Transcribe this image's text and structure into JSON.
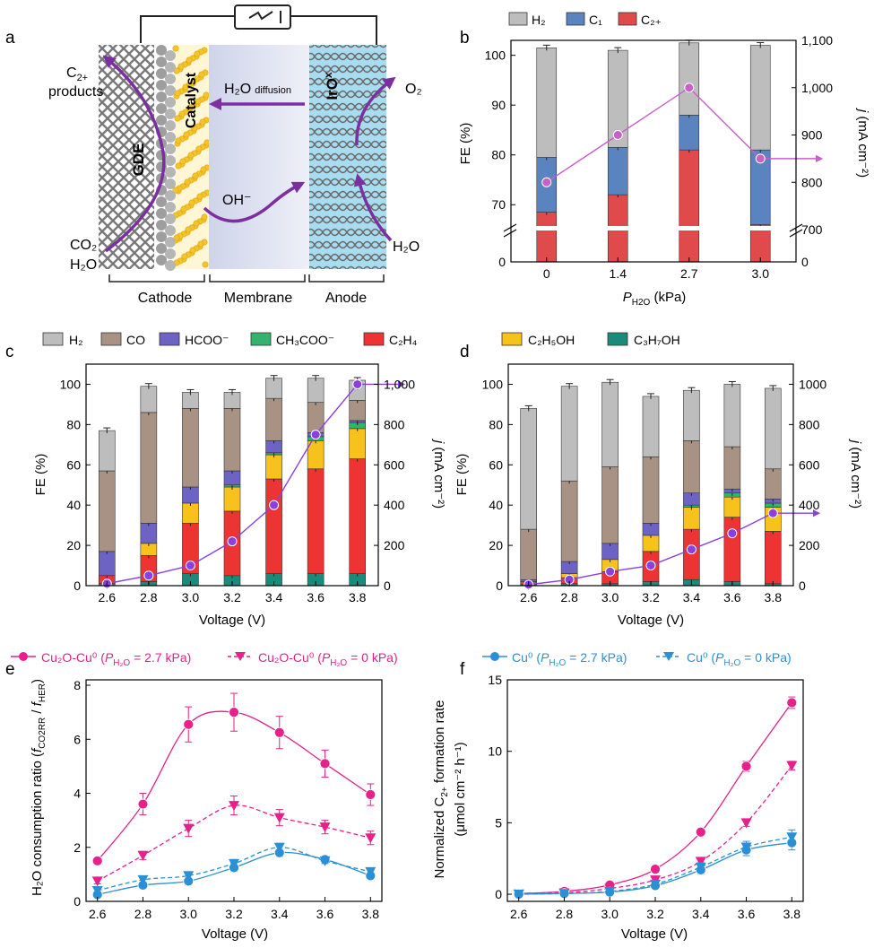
{
  "panel_labels": {
    "a": "a",
    "b": "b",
    "c": "c",
    "d": "d",
    "e": "e",
    "f": "f"
  },
  "panel_a": {
    "labels": {
      "gde": "GDE",
      "catalyst": "Catalyst",
      "irox": "IrO",
      "irox_sub": "x",
      "h2o_diffusion_main": "H₂O",
      "h2o_diffusion_sub": "diffusion",
      "oh": "OH⁻",
      "c2_top": "C",
      "c2_sub": "2+",
      "products": "products",
      "o2": "O₂",
      "co2": "CO₂",
      "h2o_left": "H₂O",
      "h2o_right": "H₂O",
      "cathode": "Cathode",
      "membrane": "Membrane",
      "anode": "Anode"
    },
    "colors": {
      "arrow": "#7b2fa0",
      "catalyst": "#f4c430",
      "membrane": "#dde0ee",
      "anode": "#a8dcf0",
      "mesh": "#777777"
    }
  },
  "chart_data": [
    {
      "panel": "b",
      "type": "bar",
      "xlabel_main": "P",
      "xlabel_sub": "H2O",
      "xlabel_unit": " (kPa)",
      "ylabel": "FE (%)",
      "y2label_j": "j",
      "y2label_unit": " (mA cm⁻²)",
      "categories": [
        "0",
        "1.4",
        "2.7",
        "3.0"
      ],
      "ylim": [
        0,
        103
      ],
      "y_ticks": [
        "0",
        "70",
        "80",
        "90",
        "100"
      ],
      "y2_ticks": [
        "0",
        "700",
        "800",
        "900",
        "1,000",
        "1,100"
      ],
      "legend": [
        "H₂",
        "C₁",
        "C₂₊"
      ],
      "series": [
        {
          "name": "C2+",
          "color": "#e04a4a",
          "values": [
            68.5,
            72,
            81,
            66
          ]
        },
        {
          "name": "C1",
          "color": "#5a84c0",
          "values": [
            11,
            9.5,
            7,
            15
          ]
        },
        {
          "name": "H2",
          "color": "#bdbdbd",
          "values": [
            22,
            19.5,
            14.5,
            21
          ]
        }
      ],
      "j_values": [
        800,
        900,
        1000,
        850
      ],
      "j_color": "#c95fc9"
    },
    {
      "panel": "c",
      "type": "bar",
      "xlabel": "Voltage (V)",
      "ylabel": "FE (%)",
      "y2label_j": "j",
      "y2label_unit": " (mA cm⁻²)",
      "categories": [
        "2.6",
        "2.8",
        "3.0",
        "3.2",
        "3.4",
        "3.6",
        "3.8"
      ],
      "ylim": [
        0,
        110
      ],
      "y_ticks": [
        "0",
        "20",
        "40",
        "60",
        "80",
        "100"
      ],
      "y2lim": [
        0,
        1100
      ],
      "y2_ticks": [
        "0",
        "200",
        "400",
        "600",
        "800",
        "1,000"
      ],
      "legend": [
        "H₂",
        "CO",
        "HCOO⁻",
        "CH₃COO⁻",
        "C₂H₄"
      ],
      "series": [
        {
          "name": "C3H7OH",
          "color": "#1a8a7a",
          "values": [
            1,
            2,
            6,
            5,
            6,
            6,
            6
          ]
        },
        {
          "name": "C2H4",
          "color": "#ee3333",
          "values": [
            4,
            13,
            25,
            32,
            47,
            52,
            57
          ]
        },
        {
          "name": "C2H5OH",
          "color": "#f7c21c",
          "values": [
            0,
            6,
            10,
            12,
            12,
            14,
            15
          ]
        },
        {
          "name": "CH3COO",
          "color": "#33b36b",
          "values": [
            0,
            0,
            0,
            1,
            1,
            2,
            3
          ]
        },
        {
          "name": "HCOO",
          "color": "#6d63c4",
          "values": [
            12,
            10,
            8,
            7,
            6,
            2,
            1
          ]
        },
        {
          "name": "CO",
          "color": "#a89284",
          "values": [
            40,
            55,
            39,
            31,
            21,
            15,
            10
          ]
        },
        {
          "name": "H2",
          "color": "#bdbdbd",
          "values": [
            20,
            13,
            8,
            8,
            10,
            12,
            10
          ]
        }
      ],
      "j_values": [
        10,
        50,
        100,
        220,
        400,
        750,
        1000
      ],
      "j_color": "#8a3fe0"
    },
    {
      "panel": "d",
      "type": "bar",
      "xlabel": "Voltage (V)",
      "ylabel": "FE (%)",
      "y2label_j": "j",
      "y2label_unit": " (mA cm⁻²)",
      "categories": [
        "2.6",
        "2.8",
        "3.0",
        "3.2",
        "3.4",
        "3.6",
        "3.8"
      ],
      "ylim": [
        0,
        110
      ],
      "y_ticks": [
        "0",
        "20",
        "40",
        "60",
        "80",
        "100"
      ],
      "y2lim": [
        0,
        1100
      ],
      "y2_ticks": [
        "0",
        "200",
        "400",
        "600",
        "800",
        "1000"
      ],
      "legend": [
        "C₂H₅OH",
        "C₃H₇OH"
      ],
      "series": [
        {
          "name": "C3H7OH",
          "color": "#1a8a7a",
          "values": [
            0.5,
            1,
            1,
            2,
            3,
            2,
            1
          ]
        },
        {
          "name": "C2H4",
          "color": "#ee3333",
          "values": [
            1.5,
            3,
            6,
            15,
            25,
            32,
            26
          ]
        },
        {
          "name": "C2H5OH",
          "color": "#f7c21c",
          "values": [
            0,
            2,
            6,
            8,
            11,
            10,
            12
          ]
        },
        {
          "name": "CH3COO",
          "color": "#33b36b",
          "values": [
            0,
            0,
            0,
            0,
            1,
            2,
            2
          ]
        },
        {
          "name": "HCOO",
          "color": "#6d63c4",
          "values": [
            1,
            6,
            8,
            6,
            6,
            2,
            2
          ]
        },
        {
          "name": "CO",
          "color": "#a89284",
          "values": [
            25,
            40,
            38,
            33,
            26,
            21,
            15
          ]
        },
        {
          "name": "H2",
          "color": "#bdbdbd",
          "values": [
            60,
            47,
            42,
            30,
            25,
            31,
            40
          ]
        }
      ],
      "j_values": [
        5,
        30,
        70,
        100,
        180,
        260,
        360
      ],
      "j_color": "#8a3fe0"
    },
    {
      "panel": "e",
      "type": "line",
      "xlabel": "Voltage (V)",
      "ylabel_a": "H₂O consumption ratio (",
      "ylabel_f1": "f",
      "ylabel_s1": "CO2RR",
      "ylabel_mid": " / ",
      "ylabel_f2": "f",
      "ylabel_s2": "HER",
      "ylabel_b": ")",
      "xlim": [
        2.55,
        3.85
      ],
      "ylim": [
        0,
        8.2
      ],
      "x_ticks": [
        "2.6",
        "2.8",
        "3.0",
        "3.2",
        "3.4",
        "3.6",
        "3.8"
      ],
      "y_ticks": [
        "0",
        "2",
        "4",
        "6",
        "8"
      ],
      "x": [
        2.6,
        2.8,
        3.0,
        3.2,
        3.4,
        3.6,
        3.8
      ],
      "series": [
        {
          "name": "Cu2O-Cu0 (PH2O = 2.7 kPa)",
          "color": "#e6218a",
          "marker": "circle",
          "dashed": false,
          "values": [
            1.5,
            3.6,
            6.55,
            7.0,
            6.25,
            5.1,
            3.95
          ],
          "errors": [
            0.1,
            0.4,
            0.65,
            0.7,
            0.6,
            0.5,
            0.4
          ]
        },
        {
          "name": "Cu2O-Cu0 (PH2O = 0 kPa)",
          "color": "#e6218a",
          "marker": "triangle",
          "dashed": true,
          "values": [
            0.75,
            1.7,
            2.7,
            3.55,
            3.1,
            2.75,
            2.35
          ],
          "errors": [
            0.1,
            0.15,
            0.3,
            0.35,
            0.3,
            0.25,
            0.25
          ]
        },
        {
          "name": "Cu0 (PH2O = 2.7 kPa)",
          "color": "#2b8fd6",
          "marker": "circle",
          "dashed": false,
          "values": [
            0.25,
            0.6,
            0.75,
            1.25,
            1.8,
            1.55,
            0.95
          ],
          "errors": [
            0.1,
            0.1,
            0.15,
            0.15,
            0.15,
            0.1,
            0.1
          ]
        },
        {
          "name": "Cu0 (PH2O = 0 kPa)",
          "color": "#2b8fd6",
          "marker": "triangle",
          "dashed": true,
          "values": [
            0.4,
            0.8,
            0.95,
            1.4,
            2.0,
            1.5,
            1.1
          ],
          "errors": [
            0.1,
            0.1,
            0.15,
            0.15,
            0.15,
            0.1,
            0.1
          ]
        }
      ],
      "legend_pre": [
        "Cu₂O-Cu⁰ (",
        "Cu₂O-Cu⁰ ("
      ],
      "legend_val": [
        " = 2.7 kPa)",
        " = 0 kPa)"
      ]
    },
    {
      "panel": "f",
      "type": "line",
      "xlabel": "Voltage (V)",
      "ylabel_line1_a": "Normalized C",
      "ylabel_line1_sub": "2+",
      "ylabel_line1_b": " formation rate",
      "ylabel_line2": "(μmol cm⁻² h⁻¹)",
      "xlim": [
        2.55,
        3.85
      ],
      "ylim": [
        -0.5,
        15
      ],
      "x_ticks": [
        "2.6",
        "2.8",
        "3.0",
        "3.2",
        "3.4",
        "3.6",
        "3.8"
      ],
      "y_ticks": [
        "0",
        "5",
        "10",
        "15"
      ],
      "x": [
        2.6,
        2.8,
        3.0,
        3.2,
        3.4,
        3.6,
        3.8
      ],
      "series": [
        {
          "name": "Cu2O-Cu0 (PH2O = 2.7 kPa)",
          "color": "#e6218a",
          "marker": "circle",
          "dashed": false,
          "values": [
            0.05,
            0.2,
            0.65,
            1.75,
            4.35,
            8.95,
            13.4
          ],
          "errors": [
            0.05,
            0.05,
            0.1,
            0.1,
            0.15,
            0.35,
            0.4
          ]
        },
        {
          "name": "Cu2O-Cu0 (PH2O = 0 kPa)",
          "color": "#e6218a",
          "marker": "triangle",
          "dashed": true,
          "values": [
            0.02,
            0.1,
            0.4,
            1.0,
            2.3,
            5.0,
            9.0
          ],
          "errors": [
            0.05,
            0.05,
            0.1,
            0.1,
            0.15,
            0.25,
            0.3
          ]
        },
        {
          "name": "Cu0 (PH2O = 2.7 kPa)",
          "color": "#2b8fd6",
          "marker": "circle",
          "dashed": false,
          "values": [
            0.0,
            0.05,
            0.15,
            0.6,
            1.7,
            3.1,
            3.6
          ],
          "errors": [
            0.02,
            0.05,
            0.05,
            0.15,
            0.3,
            0.4,
            0.5
          ]
        },
        {
          "name": "Cu0 (PH2O = 0 kPa)",
          "color": "#2b8fd6",
          "marker": "triangle",
          "dashed": true,
          "values": [
            0.0,
            0.05,
            0.2,
            0.7,
            1.9,
            3.3,
            4.0
          ],
          "errors": [
            0.02,
            0.05,
            0.05,
            0.15,
            0.3,
            0.4,
            0.5
          ]
        }
      ],
      "legend_pre": [
        "Cu⁰ (",
        "Cu⁰ ("
      ],
      "legend_val": [
        " = 2.7 kPa)",
        " = 0 kPa)"
      ]
    }
  ],
  "legend_p": "P",
  "legend_psub": "H₂O"
}
